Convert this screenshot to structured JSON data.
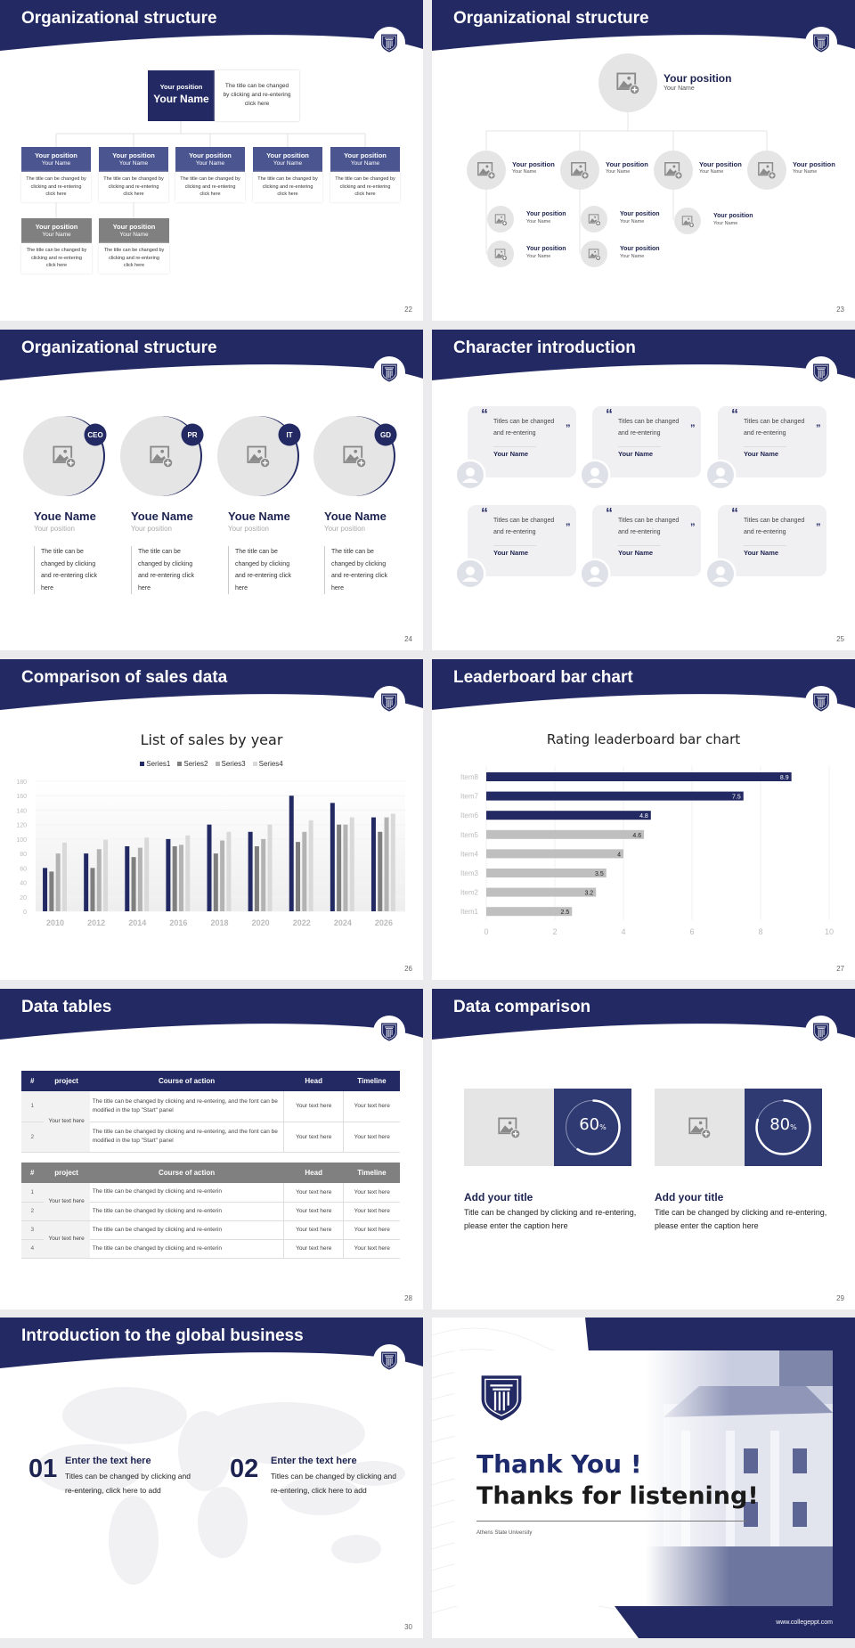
{
  "org1": {
    "title": "Organizational structure",
    "page": "22",
    "top": {
      "position": "Your position",
      "name": "Your Name",
      "desc": "The title can be changed by clicking and re-entering click here"
    },
    "level2": [
      {
        "position": "Your position",
        "name": "Your Name",
        "desc": "The title can be changed by clicking and re-entering click here"
      },
      {
        "position": "Your position",
        "name": "Your Name",
        "desc": "The title can be changed by clicking and re-entering click here"
      },
      {
        "position": "Your position",
        "name": "Your Name",
        "desc": "The title can be changed by clicking and re-entering click here"
      },
      {
        "position": "Your position",
        "name": "Your Name",
        "desc": "The title can be changed by clicking and re-entering click here"
      },
      {
        "position": "Your position",
        "name": "Your Name",
        "desc": "The title can be changed by clicking and re-entering click here"
      }
    ],
    "level3": [
      {
        "position": "Your position",
        "name": "Your Name",
        "desc": "The title can be changed by clicking and re-entering click here"
      },
      {
        "position": "Your position",
        "name": "Your Name",
        "desc": "The title can be changed by clicking and re-entering click here"
      }
    ]
  },
  "org2": {
    "title": "Organizational structure",
    "page": "23",
    "top": {
      "position": "Your position",
      "name": "Your Name"
    },
    "level2": [
      {
        "position": "Your position",
        "name": "Your Name"
      },
      {
        "position": "Your position",
        "name": "Your Name"
      },
      {
        "position": "Your position",
        "name": "Your Name"
      },
      {
        "position": "Your position",
        "name": "Your Name"
      }
    ],
    "level3": [
      {
        "position": "Your position",
        "name": "Your Name"
      },
      {
        "position": "Your position",
        "name": "Your Name"
      },
      {
        "position": "Your position",
        "name": "Your Name"
      },
      {
        "position": "Your position",
        "name": "Your Name"
      },
      {
        "position": "Your position",
        "name": "Your Name"
      }
    ]
  },
  "team": {
    "title": "Organizational structure",
    "page": "24",
    "members": [
      {
        "badge": "CEO",
        "name": "Youe Name",
        "position": "Your position",
        "desc": "The title can be changed by clicking and re-entering click here"
      },
      {
        "badge": "PR",
        "name": "Youe Name",
        "position": "Your position",
        "desc": "The title can be changed by clicking and re-entering click here"
      },
      {
        "badge": "IT",
        "name": "Youe Name",
        "position": "Your position",
        "desc": "The title can be changed by clicking and re-entering click here"
      },
      {
        "badge": "GD",
        "name": "Youe Name",
        "position": "Your position",
        "desc": "The title can be changed by clicking and re-entering click here"
      }
    ]
  },
  "characters": {
    "title": "Character introduction",
    "page": "25",
    "open_quote": "“",
    "close_quote": "”",
    "cards": [
      {
        "quote": "Titles can be changed and re-entering",
        "name": "Your Name"
      },
      {
        "quote": "Titles can be changed and re-entering",
        "name": "Your Name"
      },
      {
        "quote": "Titles can be changed and re-entering",
        "name": "Your Name"
      },
      {
        "quote": "Titles can be changed and re-entering",
        "name": "Your Name"
      },
      {
        "quote": "Titles can be changed and re-entering",
        "name": "Your Name"
      },
      {
        "quote": "Titles can be changed and re-entering",
        "name": "Your Name"
      }
    ]
  },
  "sales": {
    "title": "Comparison of sales data",
    "page": "26"
  },
  "leaderboard": {
    "title": "Leaderboard bar chart",
    "page": "27"
  },
  "chart_data": [
    {
      "type": "bar",
      "title": "List of sales by year",
      "categories": [
        "2010",
        "2012",
        "2014",
        "2016",
        "2018",
        "2020",
        "2022",
        "2024",
        "2026"
      ],
      "series": [
        {
          "name": "Series1",
          "color": "#232a63",
          "values": [
            60,
            80,
            90,
            100,
            120,
            110,
            160,
            150,
            130
          ]
        },
        {
          "name": "Series2",
          "color": "#7f7f7f",
          "values": [
            55,
            60,
            75,
            90,
            80,
            90,
            96,
            120,
            110
          ]
        },
        {
          "name": "Series3",
          "color": "#b3b3b3",
          "values": [
            80,
            86,
            88,
            92,
            98,
            100,
            110,
            120,
            130
          ]
        },
        {
          "name": "Series4",
          "color": "#d9d9d9",
          "values": [
            95,
            99,
            102,
            105,
            110,
            120,
            126,
            130,
            135
          ]
        }
      ],
      "ylim": [
        0,
        180
      ],
      "yticks": [
        "0",
        "20",
        "40",
        "60",
        "80",
        "100",
        "120",
        "140",
        "160",
        "180"
      ],
      "legend": "top",
      "grid": true
    },
    {
      "type": "bar",
      "orientation": "horizontal",
      "title": "Rating leaderboard bar chart",
      "categories": [
        "Item8",
        "Item7",
        "Item6",
        "Item5",
        "Item4",
        "Item3",
        "Item2",
        "Item1"
      ],
      "values": [
        8.9,
        7.5,
        4.8,
        4.6,
        4,
        3.5,
        3.2,
        2.5
      ],
      "labels": [
        "8.9",
        "7.5",
        "4.8",
        "4.6",
        "4",
        "3.5",
        "3.2",
        "2.5"
      ],
      "highlight_color": "#232a63",
      "base_color": "#bfbfbf",
      "highlighted": [
        "Item8",
        "Item7",
        "Item6"
      ],
      "xlim": [
        0,
        10
      ],
      "xticks": [
        "0",
        "2",
        "4",
        "6",
        "8",
        "10"
      ],
      "grid": true
    }
  ],
  "tables": {
    "title": "Data tables",
    "page": "28",
    "headers": [
      "#",
      "project",
      "Course of action",
      "Head",
      "Timeline"
    ],
    "table1": {
      "project": "Your text here",
      "rows": [
        {
          "num": "1",
          "action": "The title can be changed by clicking and re-entering, and the font can be modified in the top \"Start\" panel",
          "head": "Your text here",
          "timeline": "Your text here"
        },
        {
          "num": "2",
          "action": "The title can be changed by clicking and re-entering, and the font can be modified in the top \"Start\" panel",
          "head": "Your text here",
          "timeline": "Your text here"
        }
      ]
    },
    "table2": {
      "projects": [
        "Your text here",
        "Your text here"
      ],
      "rows": [
        {
          "num": "1",
          "action": "The title can be changed by clicking and re-enterin",
          "head": "Your text here",
          "timeline": "Your text here"
        },
        {
          "num": "2",
          "action": "The title can be changed by clicking and re-enterin",
          "head": "Your text here",
          "timeline": "Your text here"
        },
        {
          "num": "3",
          "action": "The title can be changed by clicking and re-enterin",
          "head": "Your text here",
          "timeline": "Your text here"
        },
        {
          "num": "4",
          "action": "The title can be changed by clicking and re-enterin",
          "head": "Your text here",
          "timeline": "Your text here"
        }
      ]
    }
  },
  "comparison": {
    "title": "Data comparison",
    "page": "29",
    "items": [
      {
        "value": 60,
        "value_label": "60",
        "unit": "%",
        "title": "Add your title",
        "desc": "Title can be changed by clicking and re-entering, please enter the caption here"
      },
      {
        "value": 80,
        "value_label": "80",
        "unit": "%",
        "title": "Add your title",
        "desc": "Title can be changed by clicking and re-entering, please enter the caption here"
      }
    ]
  },
  "global": {
    "title": "Introduction to the global business",
    "page": "30",
    "items": [
      {
        "num": "01",
        "title": "Enter the text here",
        "desc": "Titles can be changed by clicking and re-entering, click here to add"
      },
      {
        "num": "02",
        "title": "Enter the text here",
        "desc": "Titles can be changed by clicking and re-entering, click here to add"
      }
    ]
  },
  "thanks": {
    "line1": "Thank You !",
    "line2": "Thanks for listening!",
    "university": "Athens State University",
    "url": "www.collegeppt.com"
  },
  "colors": {
    "navy": "#232a63",
    "navy_light": "#4b5690",
    "gray_header": "#808080",
    "placeholder": "#e6e5e6"
  }
}
